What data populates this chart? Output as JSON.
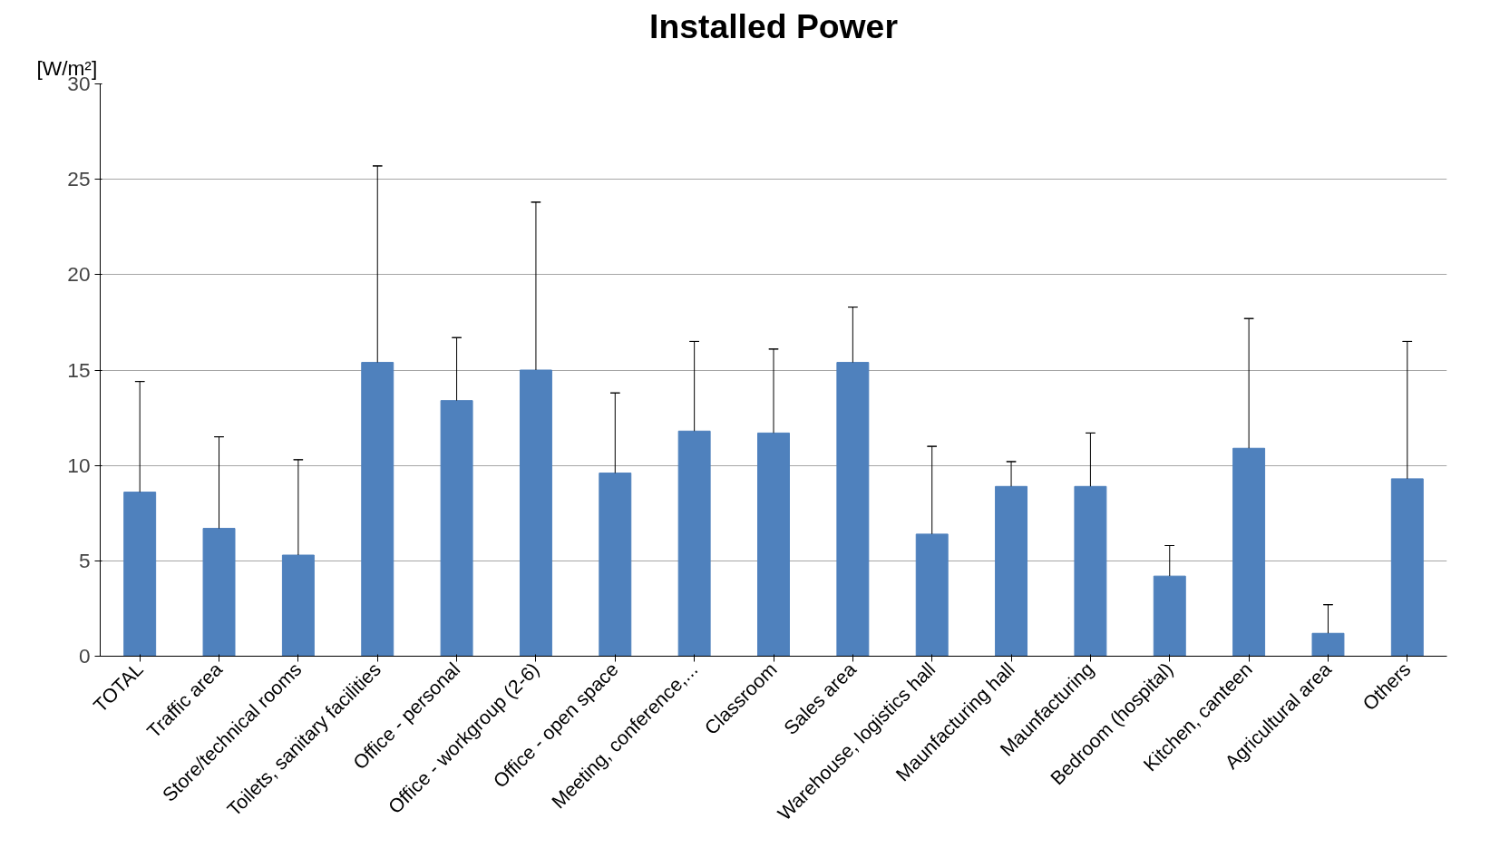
{
  "chart_data": {
    "type": "bar",
    "title": "Installed Power",
    "ylabel": "[W/m²]",
    "categories": [
      "TOTAL",
      "Traffic area",
      "Store/technical rooms",
      "Toilets, sanitary facilities",
      "Office - personal",
      "Office - workgroup (2-6)",
      "Office - open space",
      "Meeting, conference,...",
      "Classroom",
      "Sales area",
      "Warehouse, logistics hall",
      "Maunfacturing hall",
      "Maunfacturing",
      "Bedroom (hospital)",
      "Kitchen, canteen",
      "Agricultural area",
      "Others"
    ],
    "values": [
      8.6,
      6.7,
      5.3,
      15.4,
      13.4,
      15.0,
      9.6,
      11.8,
      11.7,
      15.4,
      6.4,
      8.9,
      8.9,
      4.2,
      10.9,
      1.2,
      9.3
    ],
    "errors": [
      [
        8.6,
        14.4
      ],
      [
        6.7,
        11.5
      ],
      [
        5.3,
        10.3
      ],
      [
        15.4,
        25.7
      ],
      [
        13.4,
        16.7
      ],
      [
        15.0,
        23.8
      ],
      [
        9.6,
        13.8
      ],
      [
        11.8,
        16.5
      ],
      [
        11.7,
        16.1
      ],
      [
        15.4,
        18.3
      ],
      [
        6.4,
        11.0
      ],
      [
        8.9,
        10.2
      ],
      [
        8.9,
        11.7
      ],
      [
        4.2,
        5.8
      ],
      [
        10.9,
        17.7
      ],
      [
        1.2,
        2.7
      ],
      [
        9.3,
        16.5
      ]
    ],
    "color": "#4f81bd",
    "ylim": [
      0,
      30
    ],
    "yticks": [
      0,
      5,
      10,
      15,
      20,
      25,
      30
    ],
    "grid": "y"
  }
}
